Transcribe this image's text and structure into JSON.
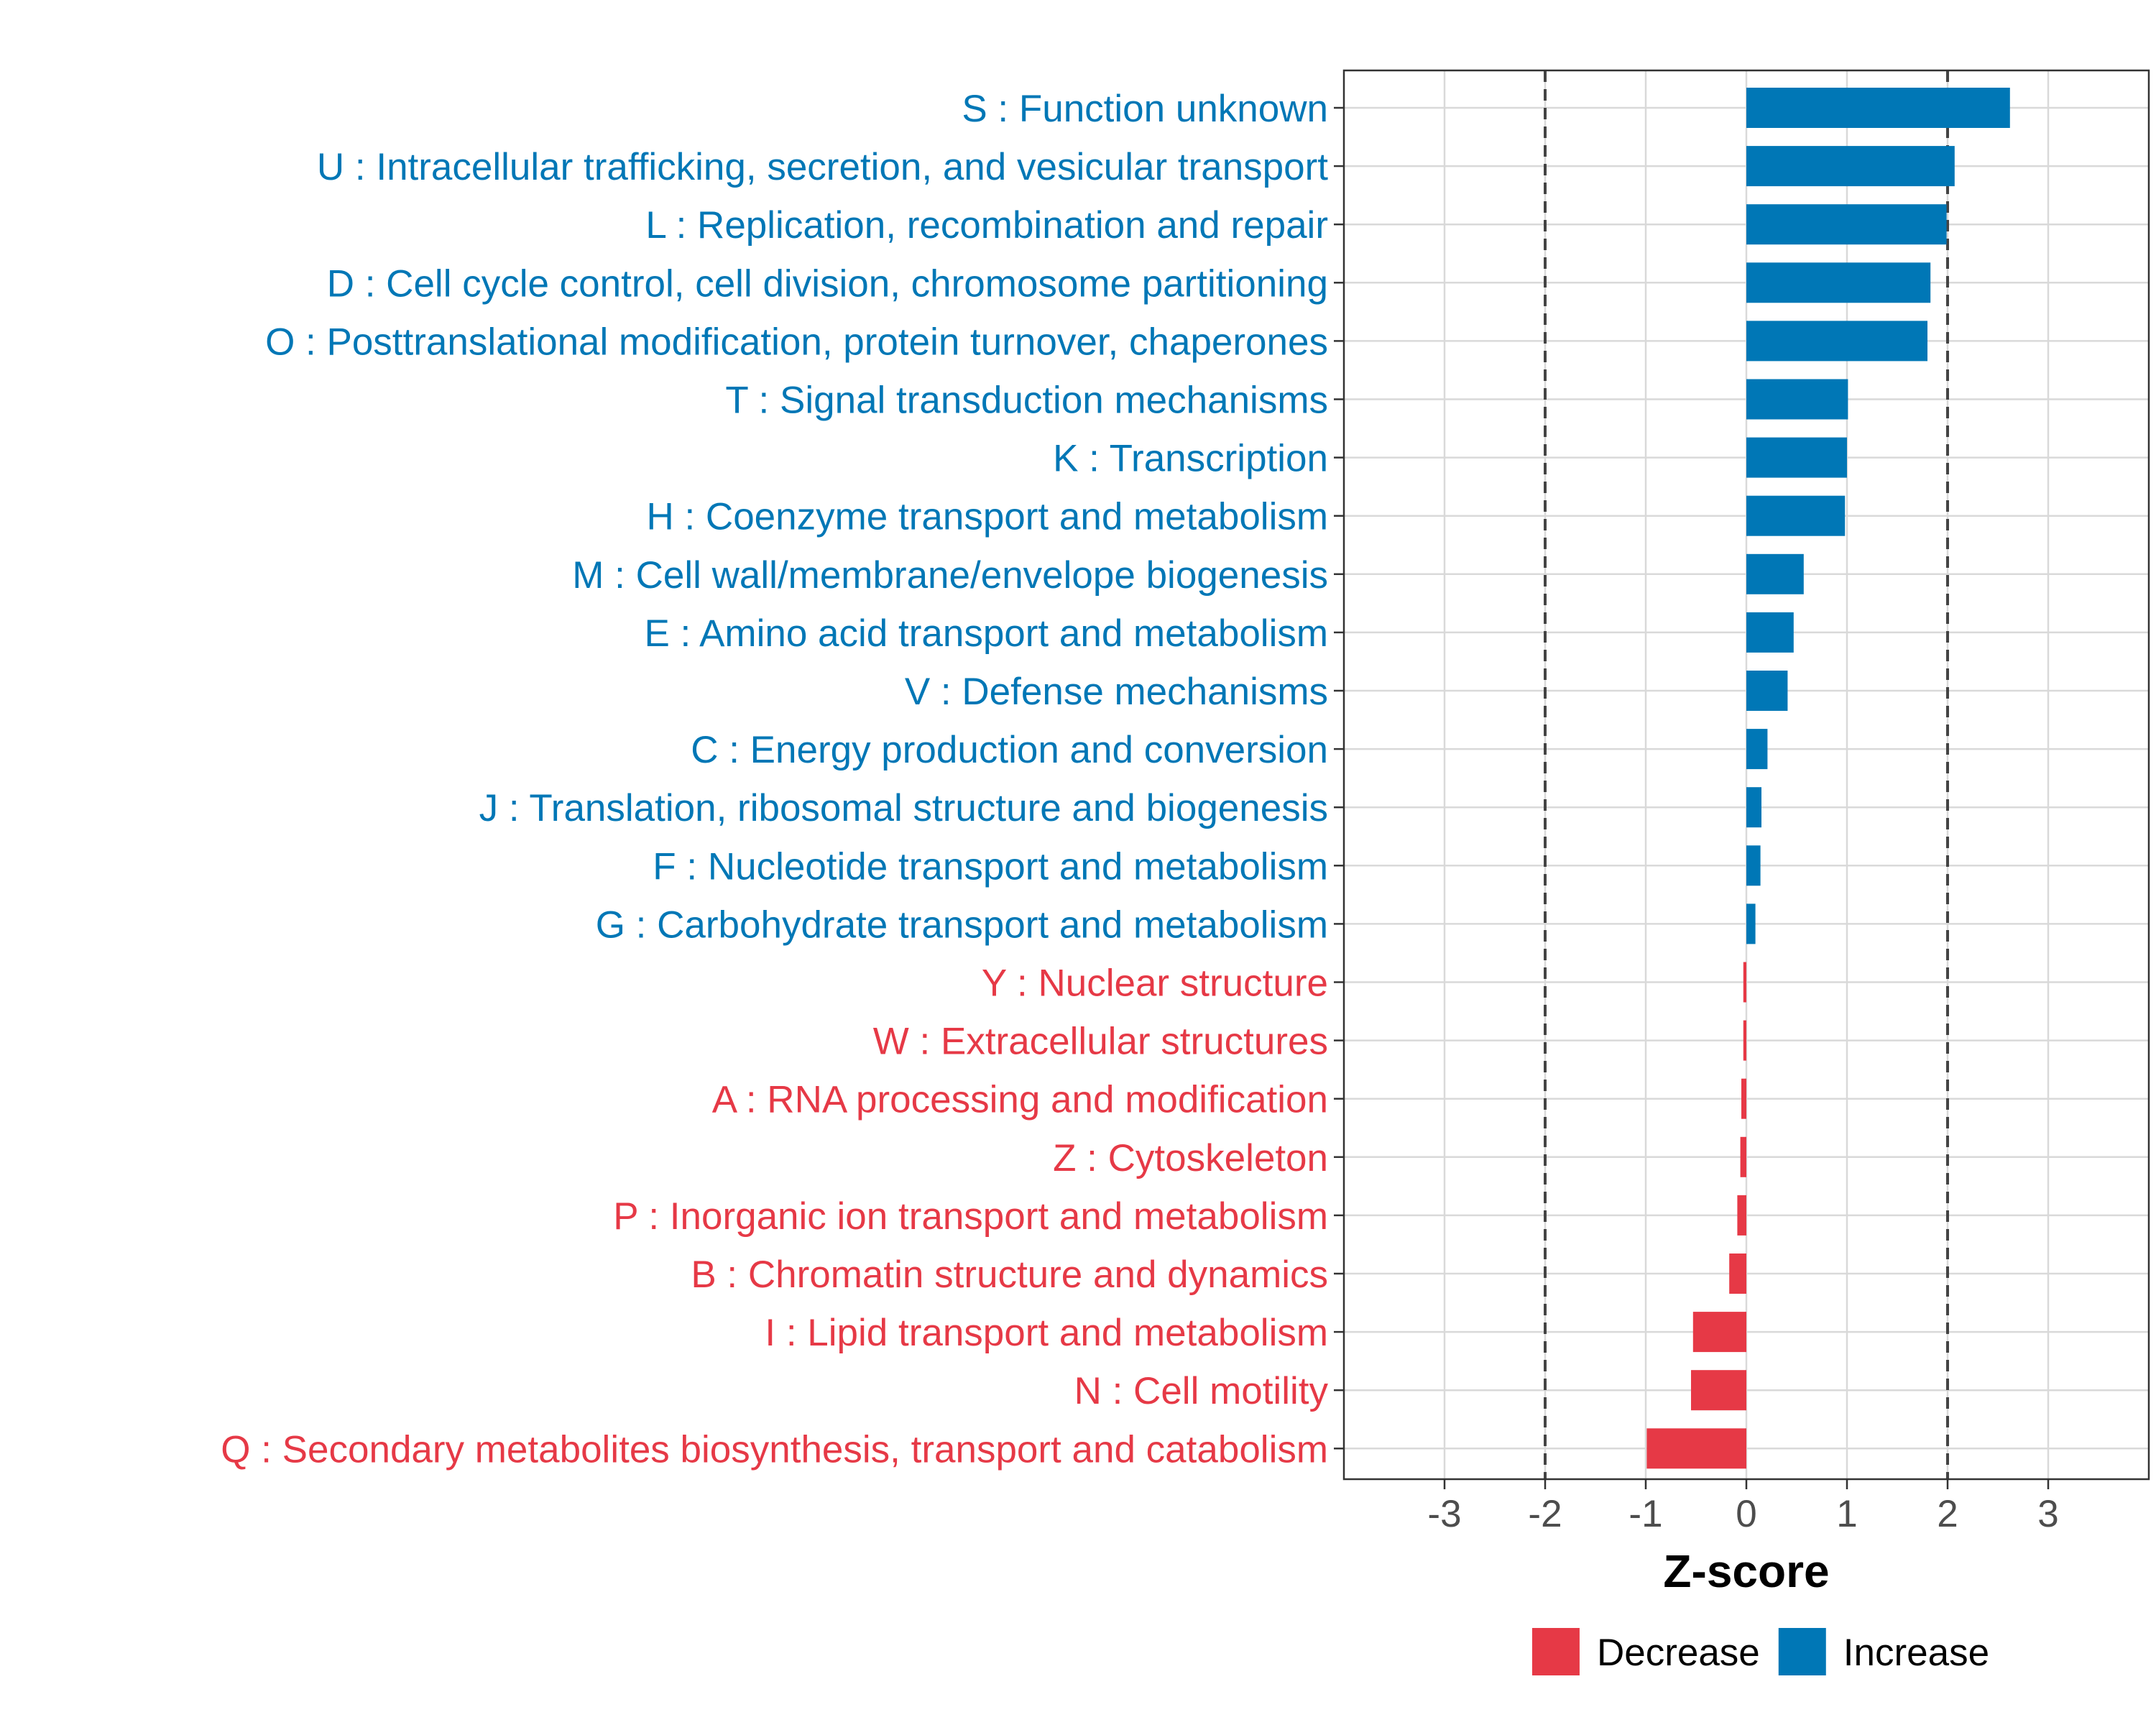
{
  "chart_data": {
    "type": "bar",
    "orientation": "horizontal",
    "title": "",
    "xlabel": "Z-score",
    "ylabel": "",
    "xlim": [
      -4,
      4
    ],
    "x_ticks": [
      -3,
      -2,
      -1,
      0,
      1,
      2,
      3
    ],
    "x_tick_labels": [
      "-3",
      "-2",
      "-1",
      "0",
      "1",
      "2",
      "3"
    ],
    "reference_lines": [
      -2,
      2
    ],
    "grid": true,
    "legend": {
      "position": "bottom",
      "entries": [
        {
          "label": "Decrease",
          "color": "#E63946"
        },
        {
          "label": "Increase",
          "color": "#0077B6"
        }
      ]
    },
    "categories": [
      "S : Function unknown",
      "U : Intracellular trafficking, secretion, and vesicular transport",
      "L : Replication, recombination and repair",
      "D : Cell cycle control, cell division, chromosome partitioning",
      "O : Posttranslational modification, protein turnover, chaperones",
      "T : Signal transduction mechanisms",
      "K : Transcription",
      "H : Coenzyme transport and metabolism",
      "M : Cell wall/membrane/envelope biogenesis",
      "E : Amino acid transport and metabolism",
      "V : Defense mechanisms",
      "C : Energy production and conversion",
      "J : Translation, ribosomal structure and biogenesis",
      "F : Nucleotide transport and metabolism",
      "G : Carbohydrate transport and metabolism",
      "Y : Nuclear structure",
      "W : Extracellular structures",
      "A : RNA processing and modification",
      "Z : Cytoskeleton",
      "P : Inorganic ion transport and metabolism",
      "B : Chromatin structure and dynamics",
      "I : Lipid transport and metabolism",
      "N : Cell motility",
      "Q : Secondary metabolites biosynthesis, transport and catabolism"
    ],
    "values": [
      2.62,
      2.07,
      1.99,
      1.83,
      1.8,
      1.01,
      1.0,
      0.98,
      0.57,
      0.47,
      0.41,
      0.21,
      0.15,
      0.14,
      0.09,
      -0.03,
      -0.03,
      -0.05,
      -0.06,
      -0.09,
      -0.17,
      -0.53,
      -0.55,
      -0.99
    ],
    "groups": [
      "Increase",
      "Increase",
      "Increase",
      "Increase",
      "Increase",
      "Increase",
      "Increase",
      "Increase",
      "Increase",
      "Increase",
      "Increase",
      "Increase",
      "Increase",
      "Increase",
      "Increase",
      "Decrease",
      "Decrease",
      "Decrease",
      "Decrease",
      "Decrease",
      "Decrease",
      "Decrease",
      "Decrease",
      "Decrease"
    ]
  }
}
